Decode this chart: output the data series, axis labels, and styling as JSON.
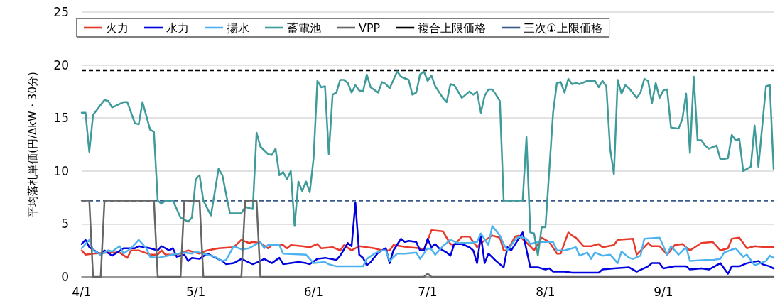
{
  "chart_data": {
    "type": "line",
    "ylabel": "平均落札単価(円/ΔkW・30分)",
    "xlim": [
      "--04-01",
      "--09-30"
    ],
    "xticks": [
      {
        "value": "--04-01",
        "label": "4/1"
      },
      {
        "value": "--05-01",
        "label": "5/1"
      },
      {
        "value": "--06-01",
        "label": "6/1"
      },
      {
        "value": "--07-01",
        "label": "7/1"
      },
      {
        "value": "--08-01",
        "label": "8/1"
      },
      {
        "value": "--09-01",
        "label": "9/1"
      }
    ],
    "ylim": [
      0,
      25
    ],
    "yticks": [
      0,
      5,
      10,
      15,
      20,
      25
    ],
    "grid": "y",
    "legend": "top",
    "marker": "none",
    "line_style": "solid",
    "series": [
      {
        "name": "火力",
        "color": "#e8382a",
        "x": [
          "--04-01",
          "--04-02",
          "--04-04",
          "--04-08",
          "--04-11",
          "--04-13",
          "--04-14",
          "--04-16",
          "--04-19",
          "--04-21",
          "--04-22",
          "--04-23",
          "--04-26",
          "--04-29",
          "--05-02",
          "--05-04",
          "--05-07",
          "--05-11",
          "--05-13",
          "--05-15",
          "--05-16",
          "--05-18",
          "--05-20",
          "--05-21",
          "--05-24",
          "--05-25",
          "--05-26",
          "--05-29",
          "--05-31",
          "--06-02",
          "--06-03",
          "--06-06",
          "--06-08",
          "--06-09",
          "--06-11",
          "--06-13",
          "--06-15",
          "--06-17",
          "--06-19",
          "--06-21",
          "--06-22",
          "--06-26",
          "--06-29",
          "--06-30",
          "--07-02",
          "--07-05",
          "--07-07",
          "--07-08",
          "--07-10",
          "--07-12",
          "--07-14",
          "--07-15",
          "--07-18",
          "--07-20",
          "--07-21",
          "--07-22",
          "--07-24",
          "--07-25",
          "--07-28",
          "--07-29",
          "--07-31",
          "--08-02",
          "--08-04",
          "--08-05",
          "--08-07",
          "--08-08",
          "--08-09",
          "--08-11",
          "--08-13",
          "--08-15",
          "--08-16",
          "--08-19",
          "--08-20",
          "--08-24",
          "--08-25",
          "--08-28",
          "--08-29",
          "--08-31",
          "--09-02",
          "--09-04",
          "--09-06",
          "--09-08",
          "--09-11",
          "--09-14",
          "--09-16",
          "--09-18",
          "--09-19",
          "--09-21",
          "--09-23",
          "--09-25",
          "--09-28",
          "--09-30"
        ],
        "values": [
          2.5,
          2.1,
          2.2,
          2.3,
          2.3,
          1.8,
          2.5,
          2.5,
          2.1,
          2.1,
          2.5,
          2.1,
          2.1,
          2.5,
          2.2,
          2.5,
          2.7,
          2.8,
          3.5,
          3.2,
          3.3,
          3.2,
          2.7,
          3.0,
          3.0,
          2.7,
          3.0,
          2.9,
          2.8,
          3.1,
          2.7,
          2.8,
          2.5,
          3.0,
          2.5,
          2.9,
          2.8,
          2.7,
          2.5,
          2.5,
          3.0,
          2.8,
          2.7,
          2.5,
          4.4,
          4.3,
          3.1,
          3.0,
          3.8,
          3.8,
          2.8,
          3.2,
          3.9,
          3.7,
          2.5,
          2.5,
          3.8,
          3.9,
          2.9,
          2.5,
          3.7,
          3.3,
          2.2,
          2.2,
          4.2,
          3.9,
          3.7,
          2.9,
          2.9,
          3.1,
          2.8,
          3.0,
          3.5,
          3.6,
          2.1,
          3.2,
          2.9,
          2.9,
          2.1,
          3.0,
          3.1,
          2.5,
          3.2,
          3.3,
          2.5,
          2.7,
          3.6,
          3.7,
          2.7,
          2.9,
          2.8,
          2.8
        ]
      },
      {
        "name": "水力",
        "color": "#0000e0",
        "x": [
          "--04-01",
          "--04-02",
          "--04-03",
          "--04-06",
          "--04-07",
          "--04-09",
          "--04-12",
          "--04-15",
          "--04-16",
          "--04-19",
          "--04-21",
          "--04-22",
          "--04-24",
          "--04-25",
          "--04-26",
          "--04-28",
          "--04-29",
          "--04-30",
          "--05-02",
          "--05-04",
          "--05-08",
          "--05-09",
          "--05-11",
          "--05-13",
          "--05-16",
          "--05-18",
          "--05-19",
          "--05-21",
          "--05-23",
          "--05-24",
          "--05-26",
          "--05-28",
          "--05-30",
          "--05-31",
          "--06-02",
          "--06-04",
          "--06-07",
          "--06-08",
          "--06-10",
          "--06-11",
          "--06-12",
          "--06-13",
          "--06-14",
          "--06-15",
          "--06-16",
          "--06-18",
          "--06-20",
          "--06-21",
          "--06-22",
          "--06-24",
          "--06-25",
          "--06-26",
          "--06-28",
          "--06-29",
          "--06-30",
          "--07-01",
          "--07-02",
          "--07-03",
          "--07-04",
          "--07-06",
          "--07-07",
          "--07-08",
          "--07-10",
          "--07-12",
          "--07-13",
          "--07-14",
          "--07-15",
          "--07-16",
          "--07-17",
          "--07-19",
          "--07-21",
          "--07-22",
          "--07-23",
          "--07-26",
          "--07-28",
          "--07-30",
          "--08-01",
          "--08-02",
          "--08-03",
          "--08-06",
          "--08-08",
          "--08-13",
          "--08-15",
          "--08-16",
          "--08-19",
          "--08-23",
          "--08-25",
          "--08-28",
          "--08-29",
          "--08-31",
          "--09-01",
          "--09-04",
          "--09-07",
          "--09-08",
          "--09-11",
          "--09-13",
          "--09-16",
          "--09-18",
          "--09-19",
          "--09-21",
          "--09-23",
          "--09-26",
          "--09-27",
          "--09-29",
          "--09-30"
        ],
        "values": [
          3.1,
          3.5,
          2.8,
          2.1,
          2.5,
          2.0,
          2.7,
          2.7,
          2.9,
          2.7,
          2.5,
          2.9,
          2.5,
          2.7,
          1.9,
          2.1,
          1.5,
          1.8,
          1.7,
          2.2,
          1.5,
          1.2,
          1.3,
          1.7,
          1.2,
          1.5,
          1.7,
          1.3,
          1.8,
          1.2,
          1.3,
          1.4,
          1.3,
          1.2,
          1.7,
          1.8,
          1.6,
          2.0,
          3.2,
          2.9,
          7.0,
          2.1,
          1.8,
          1.1,
          1.4,
          2.3,
          2.7,
          1.3,
          2.5,
          3.6,
          3.3,
          3.4,
          3.3,
          2.5,
          2.5,
          3.6,
          2.8,
          3.1,
          2.7,
          2.3,
          2.0,
          3.1,
          3.1,
          2.8,
          2.5,
          1.3,
          3.9,
          1.3,
          2.2,
          1.5,
          0.9,
          2.8,
          2.5,
          4.2,
          0.9,
          0.9,
          0.7,
          0.8,
          0.5,
          0.5,
          0.4,
          0.4,
          0.4,
          0.7,
          0.8,
          0.9,
          0.5,
          1.0,
          1.3,
          1.3,
          0.8,
          1.0,
          1.0,
          0.7,
          0.8,
          0.7,
          1.3,
          0.3,
          1.0,
          1.0,
          1.3,
          1.5,
          1.2,
          1.0,
          0.8
        ]
      },
      {
        "name": "揚水",
        "color": "#4db3ef",
        "x": [
          "--04-01",
          "--04-03",
          "--04-04",
          "--04-06",
          "--04-08",
          "--04-09",
          "--04-11",
          "--04-12",
          "--04-14",
          "--04-16",
          "--04-18",
          "--04-19",
          "--04-21",
          "--04-25",
          "--04-28",
          "--04-30",
          "--05-01",
          "--05-03",
          "--05-06",
          "--05-08",
          "--05-09",
          "--05-11",
          "--05-13",
          "--05-15",
          "--05-16",
          "--05-18",
          "--05-19",
          "--05-20",
          "--05-23",
          "--05-24",
          "--05-30",
          "--06-01",
          "--06-04",
          "--06-05",
          "--06-07",
          "--06-14",
          "--06-15",
          "--06-17",
          "--06-19",
          "--06-20",
          "--06-21",
          "--06-23",
          "--06-25",
          "--06-28",
          "--06-29",
          "--07-01",
          "--07-02",
          "--07-03",
          "--07-05",
          "--07-07",
          "--07-09",
          "--07-12",
          "--07-14",
          "--07-15",
          "--07-17",
          "--07-18",
          "--07-20",
          "--07-21",
          "--07-22",
          "--07-24",
          "--07-25",
          "--07-27",
          "--07-28",
          "--07-30",
          "--08-01",
          "--08-03",
          "--08-04",
          "--08-06",
          "--08-09",
          "--08-10",
          "--08-12",
          "--08-13",
          "--08-14",
          "--08-16",
          "--08-18",
          "--08-20",
          "--08-21",
          "--08-23",
          "--08-24",
          "--08-26",
          "--08-27",
          "--08-31",
          "--09-02",
          "--09-03",
          "--09-05",
          "--09-07",
          "--09-08",
          "--09-12",
          "--09-14",
          "--09-16",
          "--09-17",
          "--09-20",
          "--09-22",
          "--09-23",
          "--09-25",
          "--09-28",
          "--09-29",
          "--09-30"
        ],
        "values": [
          2.7,
          3.5,
          2.5,
          2.1,
          2.5,
          2.4,
          2.9,
          2.2,
          2.7,
          3.5,
          2.7,
          1.9,
          1.8,
          2.1,
          2.3,
          2.2,
          2.4,
          2.2,
          1.9,
          1.5,
          1.6,
          2.9,
          2.6,
          2.7,
          2.9,
          3.3,
          2.7,
          3.0,
          3.0,
          2.2,
          2.1,
          1.3,
          1.4,
          1.2,
          1.0,
          1.0,
          1.7,
          2.2,
          2.5,
          2.5,
          1.5,
          2.2,
          2.2,
          2.3,
          1.7,
          2.7,
          2.6,
          2.1,
          2.9,
          3.5,
          3.2,
          3.2,
          3.3,
          4.1,
          3.0,
          4.8,
          3.9,
          3.1,
          2.5,
          3.5,
          3.8,
          3.6,
          3.1,
          3.3,
          3.3,
          3.3,
          2.5,
          2.5,
          2.8,
          2.0,
          2.3,
          1.7,
          2.3,
          2.0,
          2.1,
          1.3,
          2.4,
          1.8,
          1.7,
          2.0,
          3.6,
          3.7,
          2.1,
          2.9,
          2.1,
          2.8,
          1.5,
          1.6,
          1.6,
          1.7,
          2.3,
          2.7,
          1.9,
          2.1,
          1.1,
          1.5,
          2.0,
          1.8
        ]
      },
      {
        "name": "蓄電池",
        "color": "#3f9a9a",
        "x": [
          "--04-01",
          "--04-02",
          "--04-03",
          "--04-04",
          "--04-07",
          "--04-08",
          "--04-09",
          "--04-12",
          "--04-13",
          "--04-15",
          "--04-16",
          "--04-17",
          "--04-19",
          "--04-20",
          "--04-21",
          "--04-22",
          "--04-23",
          "--04-25",
          "--04-27",
          "--04-28",
          "--04-29",
          "--04-30",
          "--05-01",
          "--05-02",
          "--05-03",
          "--05-05",
          "--05-07",
          "--05-08",
          "--05-10",
          "--05-13",
          "--05-14",
          "--05-16",
          "--05-17",
          "--05-18",
          "--05-20",
          "--05-21",
          "--05-22",
          "--05-23",
          "--05-24",
          "--05-25",
          "--05-26",
          "--05-27",
          "--05-28",
          "--05-29",
          "--05-30",
          "--05-31",
          "--06-01",
          "--06-02",
          "--06-03",
          "--06-04",
          "--06-05",
          "--06-06",
          "--06-07",
          "--06-08",
          "--06-09",
          "--06-10",
          "--06-11",
          "--06-12",
          "--06-13",
          "--06-14",
          "--06-15",
          "--06-16",
          "--06-18",
          "--06-19",
          "--06-20",
          "--06-21",
          "--06-23",
          "--06-24",
          "--06-26",
          "--06-27",
          "--06-28",
          "--06-29",
          "--06-30",
          "--07-01",
          "--07-02",
          "--07-03",
          "--07-05",
          "--07-06",
          "--07-07",
          "--07-08",
          "--07-09",
          "--07-10",
          "--07-12",
          "--07-13",
          "--07-14",
          "--07-15",
          "--07-16",
          "--07-17",
          "--07-18",
          "--07-19",
          "--07-20",
          "--07-21",
          "--07-26",
          "--07-27",
          "--07-28",
          "--07-29",
          "--07-30",
          "--07-31",
          "--08-01",
          "--08-03",
          "--08-04",
          "--08-05",
          "--08-06",
          "--08-07",
          "--08-08",
          "--08-09",
          "--08-10",
          "--08-12",
          "--08-14",
          "--08-15",
          "--08-16",
          "--08-17",
          "--08-18",
          "--08-19",
          "--08-20",
          "--08-21",
          "--08-22",
          "--08-23",
          "--08-25",
          "--08-26",
          "--08-27",
          "--08-28",
          "--08-29",
          "--08-30",
          "--08-31",
          "--09-01",
          "--09-02",
          "--09-03",
          "--09-05",
          "--09-06",
          "--09-07",
          "--09-08",
          "--09-09",
          "--09-10",
          "--09-11",
          "--09-12",
          "--09-13",
          "--09-15",
          "--09-16",
          "--09-18",
          "--09-19",
          "--09-20",
          "--09-21",
          "--09-22",
          "--09-24",
          "--09-25",
          "--09-26",
          "--09-28",
          "--09-29",
          "--09-30"
        ],
        "values": [
          15.5,
          15.5,
          11.8,
          15.3,
          16.7,
          16.6,
          16.0,
          16.5,
          16.5,
          14.5,
          14.4,
          16.5,
          13.9,
          13.7,
          7.2,
          6.9,
          7.2,
          7.2,
          5.6,
          5.4,
          5.2,
          5.6,
          9.2,
          9.6,
          7.2,
          5.8,
          10.2,
          9.6,
          6.0,
          6.0,
          6.6,
          6.4,
          13.6,
          12.3,
          11.6,
          11.5,
          12.1,
          9.6,
          9.9,
          9.2,
          10.0,
          4.8,
          9.0,
          8.1,
          9.0,
          8.0,
          11.2,
          18.5,
          17.9,
          18.0,
          11.6,
          17.2,
          17.4,
          18.6,
          18.6,
          18.3,
          17.4,
          18.1,
          17.6,
          17.5,
          19.1,
          17.9,
          17.4,
          18.4,
          18.2,
          17.8,
          19.4,
          18.9,
          18.6,
          17.2,
          17.4,
          19.1,
          19.4,
          18.5,
          19.0,
          18.0,
          16.9,
          16.5,
          18.2,
          18.1,
          17.5,
          16.9,
          17.5,
          17.2,
          17.5,
          15.5,
          17.1,
          17.7,
          17.7,
          17.2,
          16.6,
          7.2,
          7.2,
          13.2,
          4.2,
          4.1,
          2.0,
          4.7,
          4.7,
          15.5,
          18.3,
          18.4,
          17.4,
          18.7,
          18.2,
          18.3,
          18.2,
          18.5,
          18.5,
          17.9,
          18.5,
          18.0,
          12.1,
          9.7,
          18.6,
          17.3,
          18.1,
          17.8,
          16.9,
          17.4,
          18.7,
          18.5,
          16.4,
          18.3,
          16.9,
          17.6,
          17.7,
          14.1,
          14.0,
          14.9,
          17.3,
          11.7,
          18.9,
          12.9,
          12.9,
          12.4,
          12.1,
          12.4,
          11.1,
          11.2,
          13.4,
          12.9,
          13.0,
          10.0,
          10.4,
          14.3,
          10.4,
          18.0,
          18.1,
          10.2
        ]
      },
      {
        "name": "VPP",
        "color": "#666666",
        "x": [
          "--04-01",
          "--04-03",
          "--04-04",
          "--04-06",
          "--04-07",
          "--04-20",
          "--04-21",
          "--04-27",
          "--04-28",
          "--05-02",
          "--05-03",
          "--05-13",
          "--05-14",
          "--05-17",
          "--05-18",
          "--06-30",
          "--07-01",
          "--07-02",
          "--09-30"
        ],
        "values": [
          7.2,
          7.2,
          0,
          0,
          7.2,
          7.2,
          0,
          0,
          7.2,
          7.2,
          0,
          0,
          7.2,
          7.2,
          0,
          0,
          0.3,
          0,
          0
        ]
      }
    ],
    "ref_lines": [
      {
        "axis": "y",
        "value": 19.5,
        "label": "複合上限価格",
        "color": "#000000",
        "line_style": "dashed"
      },
      {
        "axis": "y",
        "value": 7.2,
        "label": "三次①上限価格",
        "color": "#3b5a8c",
        "line_style": "dashed"
      }
    ]
  }
}
